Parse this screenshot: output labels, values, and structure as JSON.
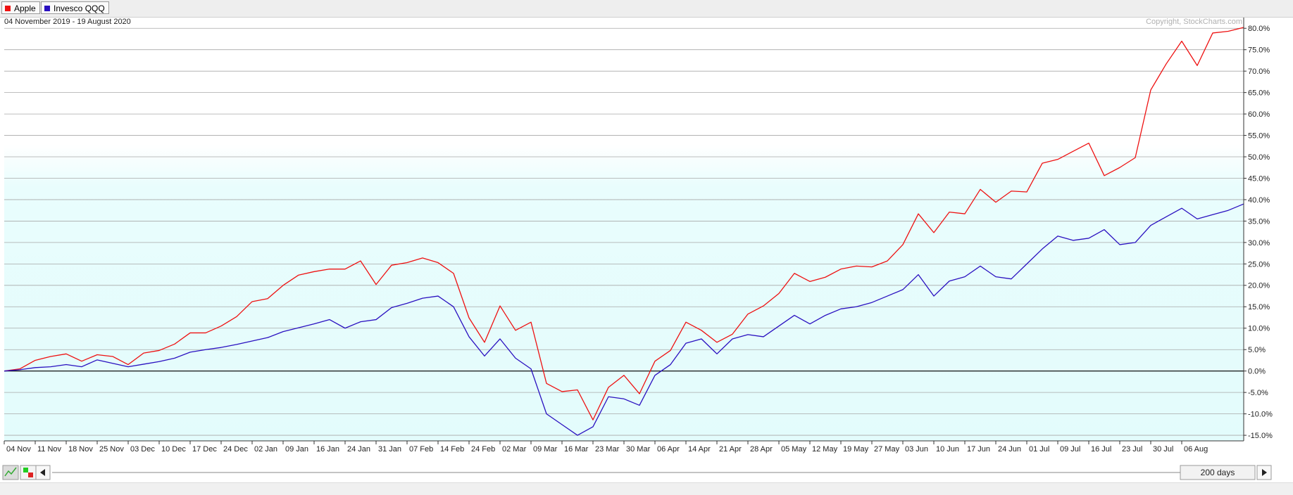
{
  "chart_data": {
    "type": "line",
    "subtitle": "04 November 2019 - 19 August 2020",
    "copyright": "Copyright, StockCharts.com",
    "categories": [
      "04 Nov",
      null,
      "11 Nov",
      null,
      "18 Nov",
      null,
      "25 Nov",
      null,
      "03 Dec",
      null,
      "10 Dec",
      null,
      "17 Dec",
      null,
      "24 Dec",
      null,
      "02 Jan",
      null,
      "09 Jan",
      null,
      "16 Jan",
      null,
      "24 Jan",
      null,
      "31 Jan",
      null,
      "07 Feb",
      null,
      "14 Feb",
      null,
      "24 Feb",
      null,
      "02 Mar",
      null,
      "09 Mar",
      null,
      "16 Mar",
      null,
      "23 Mar",
      null,
      "30 Mar",
      null,
      "06 Apr",
      null,
      "14 Apr",
      null,
      "21 Apr",
      null,
      "28 Apr",
      null,
      "05 May",
      null,
      "12 May",
      null,
      "19 May",
      null,
      "27 May",
      null,
      "03 Jun",
      null,
      "10 Jun",
      null,
      "17 Jun",
      null,
      "24 Jun",
      null,
      "01 Jul",
      null,
      "09 Jul",
      null,
      "16 Jul",
      null,
      "23 Jul",
      null,
      "30 Jul",
      null,
      "06 Aug",
      null,
      null,
      null,
      null
    ],
    "series": [
      {
        "name": "Apple",
        "color": "#ee1111",
        "values": [
          0,
          0.5,
          2.5,
          3.4,
          4.0,
          2.3,
          3.8,
          3.4,
          1.5,
          4.2,
          4.8,
          6.3,
          8.9,
          8.9,
          10.5,
          12.7,
          16.2,
          16.9,
          20.0,
          22.4,
          23.2,
          23.8,
          23.8,
          25.7,
          20.2,
          24.7,
          25.3,
          26.4,
          25.3,
          22.8,
          12.4,
          6.7,
          15.2,
          9.5,
          11.4,
          -2.9,
          -4.8,
          -4.4,
          -11.4,
          -3.8,
          -1.0,
          -5.3,
          2.3,
          4.8,
          11.4,
          9.5,
          6.7,
          8.6,
          13.3,
          15.2,
          18.1,
          22.8,
          20.9,
          21.9,
          23.8,
          24.5,
          24.3,
          25.7,
          29.5,
          36.7,
          32.3,
          37.1,
          36.7,
          42.4,
          39.4,
          42.0,
          41.8,
          48.5,
          49.4,
          51.3,
          53.2,
          45.6,
          47.5,
          49.8,
          65.6,
          71.7,
          77.0,
          71.3,
          78.9,
          79.3,
          80.2
        ]
      },
      {
        "name": "Invesco QQQ",
        "color": "#2a10c0",
        "values": [
          0,
          0.3,
          0.8,
          1.0,
          1.5,
          1.0,
          2.6,
          1.8,
          1.0,
          1.6,
          2.2,
          3.0,
          4.4,
          5.0,
          5.5,
          6.2,
          7.0,
          7.8,
          9.2,
          10.1,
          11.0,
          12.0,
          10.0,
          11.5,
          12.0,
          14.8,
          15.8,
          17.0,
          17.5,
          15.0,
          8.0,
          3.5,
          7.5,
          3.0,
          0.5,
          -10.0,
          -12.5,
          -15.0,
          -13.0,
          -6.0,
          -6.5,
          -8.0,
          -1.0,
          1.5,
          6.5,
          7.5,
          4.0,
          7.5,
          8.5,
          8.0,
          10.5,
          13.0,
          11.0,
          13.0,
          14.5,
          15.0,
          16.0,
          17.5,
          19.0,
          22.5,
          17.5,
          21.0,
          22.0,
          24.5,
          22.0,
          21.5,
          25.0,
          28.5,
          31.5,
          30.5,
          31.0,
          33.0,
          29.5,
          30.0,
          34.0,
          36.0,
          38.0,
          35.5,
          36.5,
          37.5,
          39.0
        ]
      }
    ],
    "ylim": [
      -16.3,
      82.5
    ],
    "yticks": [
      {
        "value": -15,
        "label": "-15.0%"
      },
      {
        "value": -10,
        "label": "-10.0%"
      },
      {
        "value": -5,
        "label": "-5.0%"
      },
      {
        "value": 0,
        "label": "0.0%"
      },
      {
        "value": 5,
        "label": "5.0%"
      },
      {
        "value": 10,
        "label": "10.0%"
      },
      {
        "value": 15,
        "label": "15.0%"
      },
      {
        "value": 20,
        "label": "20.0%"
      },
      {
        "value": 25,
        "label": "25.0%"
      },
      {
        "value": 30,
        "label": "30.0%"
      },
      {
        "value": 35,
        "label": "35.0%"
      },
      {
        "value": 40,
        "label": "40.0%"
      },
      {
        "value": 45,
        "label": "45.0%"
      },
      {
        "value": 50,
        "label": "50.0%"
      },
      {
        "value": 55,
        "label": "55.0%"
      },
      {
        "value": 60,
        "label": "60.0%"
      },
      {
        "value": 65,
        "label": "65.0%"
      },
      {
        "value": 70,
        "label": "70.0%"
      },
      {
        "value": 75,
        "label": "75.0%"
      },
      {
        "value": 80,
        "label": "80.0%"
      }
    ],
    "grid": true,
    "zero_line": true,
    "y_axis_side": "right"
  },
  "controls": {
    "range_label": "200 days"
  }
}
